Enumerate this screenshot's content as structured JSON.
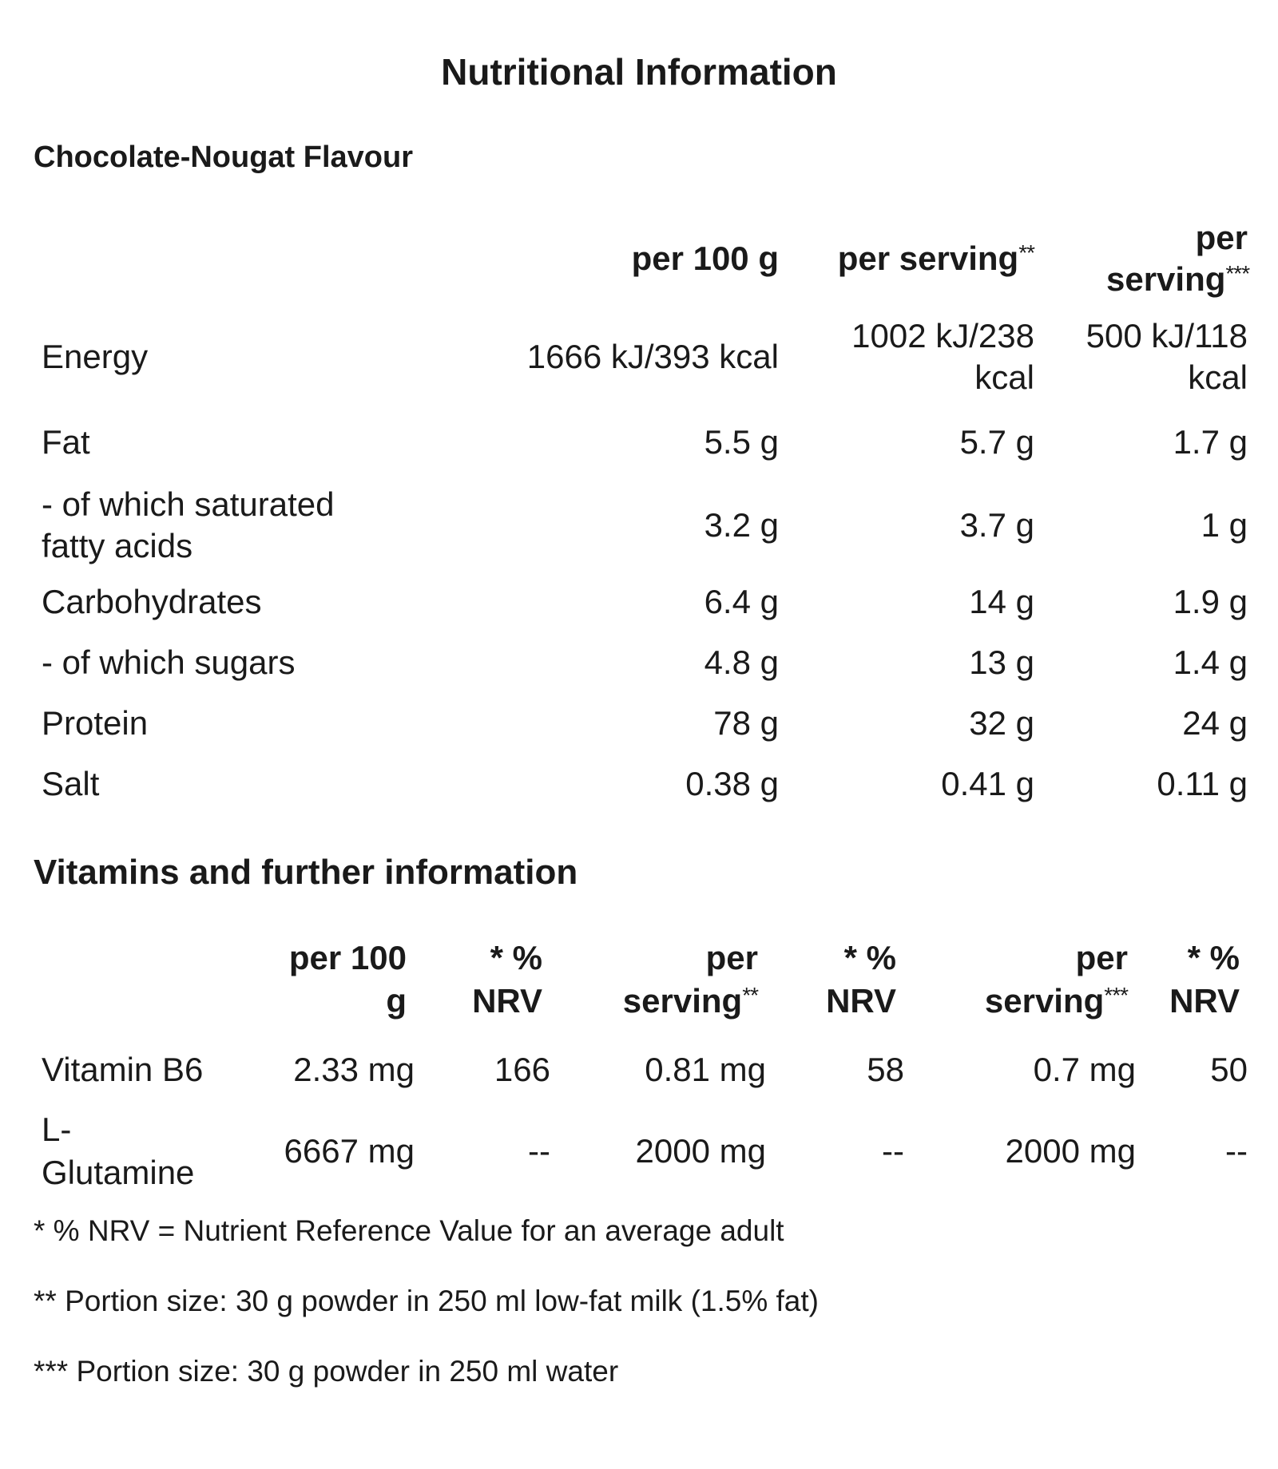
{
  "title": "Nutritional Information",
  "flavour": "Chocolate-Nougat Flavour",
  "nutrition": {
    "headers": {
      "per100": "per 100 g",
      "serving_milk": "per serving",
      "serving_milk_mark": "**",
      "serving_water_line1": "per",
      "serving_water_line2": "serving",
      "serving_water_mark": "***"
    },
    "rows": [
      {
        "label": "Energy",
        "per100": "1666 kJ/393 kcal",
        "milk": "1002 kJ/238 kcal",
        "water": "500 kJ/118 kcal"
      },
      {
        "label": "Fat",
        "per100": "5.5 g",
        "milk": "5.7 g",
        "water": "1.7 g"
      },
      {
        "label": "- of which saturated fatty acids",
        "per100": "3.2 g",
        "milk": "3.7 g",
        "water": "1 g"
      },
      {
        "label": "Carbohydrates",
        "per100": "6.4 g",
        "milk": "14 g",
        "water": "1.9 g"
      },
      {
        "label": "- of which sugars",
        "per100": "4.8 g",
        "milk": "13 g",
        "water": "1.4 g"
      },
      {
        "label": "Protein",
        "per100": "78 g",
        "milk": "32 g",
        "water": "24 g"
      },
      {
        "label": "Salt",
        "per100": "0.38 g",
        "milk": "0.41 g",
        "water": "0.11 g"
      }
    ]
  },
  "vitamins_title": "Vitamins and further information",
  "vitamins": {
    "headers": {
      "per100_line1": "per 100",
      "per100_line2": "g",
      "nrv_line1": "* %",
      "nrv_line2": "NRV",
      "per_line1": "per",
      "serving": "serving",
      "milk_mark": "**",
      "water_mark": "***"
    },
    "rows": [
      {
        "label": "Vitamin B6",
        "per100": "2.33 mg",
        "nrv100": "166",
        "milk": "0.81 mg",
        "nrv_milk": "58",
        "water": "0.7 mg",
        "nrv_water": "50"
      },
      {
        "label": "L-Glutamine",
        "per100": "6667 mg",
        "nrv100": "--",
        "milk": "2000 mg",
        "nrv_milk": "--",
        "water": "2000 mg",
        "nrv_water": "--"
      }
    ]
  },
  "footnotes": [
    "* % NRV = Nutrient Reference Value for an average adult",
    "** Portion size: 30 g powder in 250 ml low-fat milk (1.5% fat)",
    "*** Portion size: 30 g powder in 250 ml water"
  ]
}
